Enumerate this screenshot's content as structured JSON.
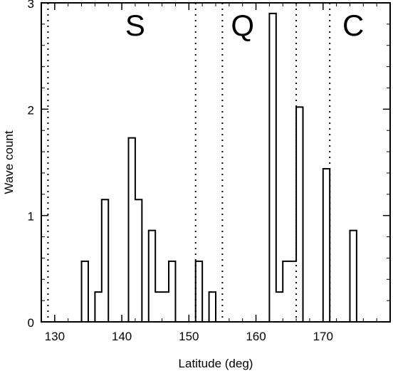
{
  "chart_data": {
    "type": "bar",
    "style": "step-histogram",
    "xlabel": "Latitude (deg)",
    "ylabel": "Wave count",
    "xlim": [
      128,
      180
    ],
    "ylim": [
      0,
      3
    ],
    "x_ticks": [
      130,
      140,
      150,
      160,
      170
    ],
    "y_ticks": [
      0,
      1,
      2,
      3
    ],
    "bin_width": 1,
    "bins": [
      {
        "x0": 134,
        "value": 0.57
      },
      {
        "x0": 135,
        "value": 0
      },
      {
        "x0": 136,
        "value": 0.28
      },
      {
        "x0": 137,
        "value": 1.15
      },
      {
        "x0": 138,
        "value": 0
      },
      {
        "x0": 141,
        "value": 1.73
      },
      {
        "x0": 142,
        "value": 1.15
      },
      {
        "x0": 143,
        "value": 0
      },
      {
        "x0": 144,
        "value": 0.86
      },
      {
        "x0": 145,
        "value": 0.28
      },
      {
        "x0": 146,
        "value": 0.28
      },
      {
        "x0": 147,
        "value": 0.57
      },
      {
        "x0": 148,
        "value": 0
      },
      {
        "x0": 151,
        "value": 0.57
      },
      {
        "x0": 152,
        "value": 0
      },
      {
        "x0": 153,
        "value": 0.28
      },
      {
        "x0": 154,
        "value": 0
      },
      {
        "x0": 162,
        "value": 2.9
      },
      {
        "x0": 163,
        "value": 0.28
      },
      {
        "x0": 164,
        "value": 0.57
      },
      {
        "x0": 165,
        "value": 0.57
      },
      {
        "x0": 166,
        "value": 2.02
      },
      {
        "x0": 167,
        "value": 0
      },
      {
        "x0": 170,
        "value": 1.44
      },
      {
        "x0": 171,
        "value": 0
      },
      {
        "x0": 174,
        "value": 0.86
      },
      {
        "x0": 175,
        "value": 0
      }
    ],
    "dividers": [
      129,
      151,
      155,
      166,
      171
    ],
    "region_labels": [
      {
        "text": "S",
        "x": 142
      },
      {
        "text": "Q",
        "x": 158
      },
      {
        "text": "C",
        "x": 174.5
      }
    ],
    "grid": false,
    "legend": "none",
    "line_color": "#000000"
  }
}
